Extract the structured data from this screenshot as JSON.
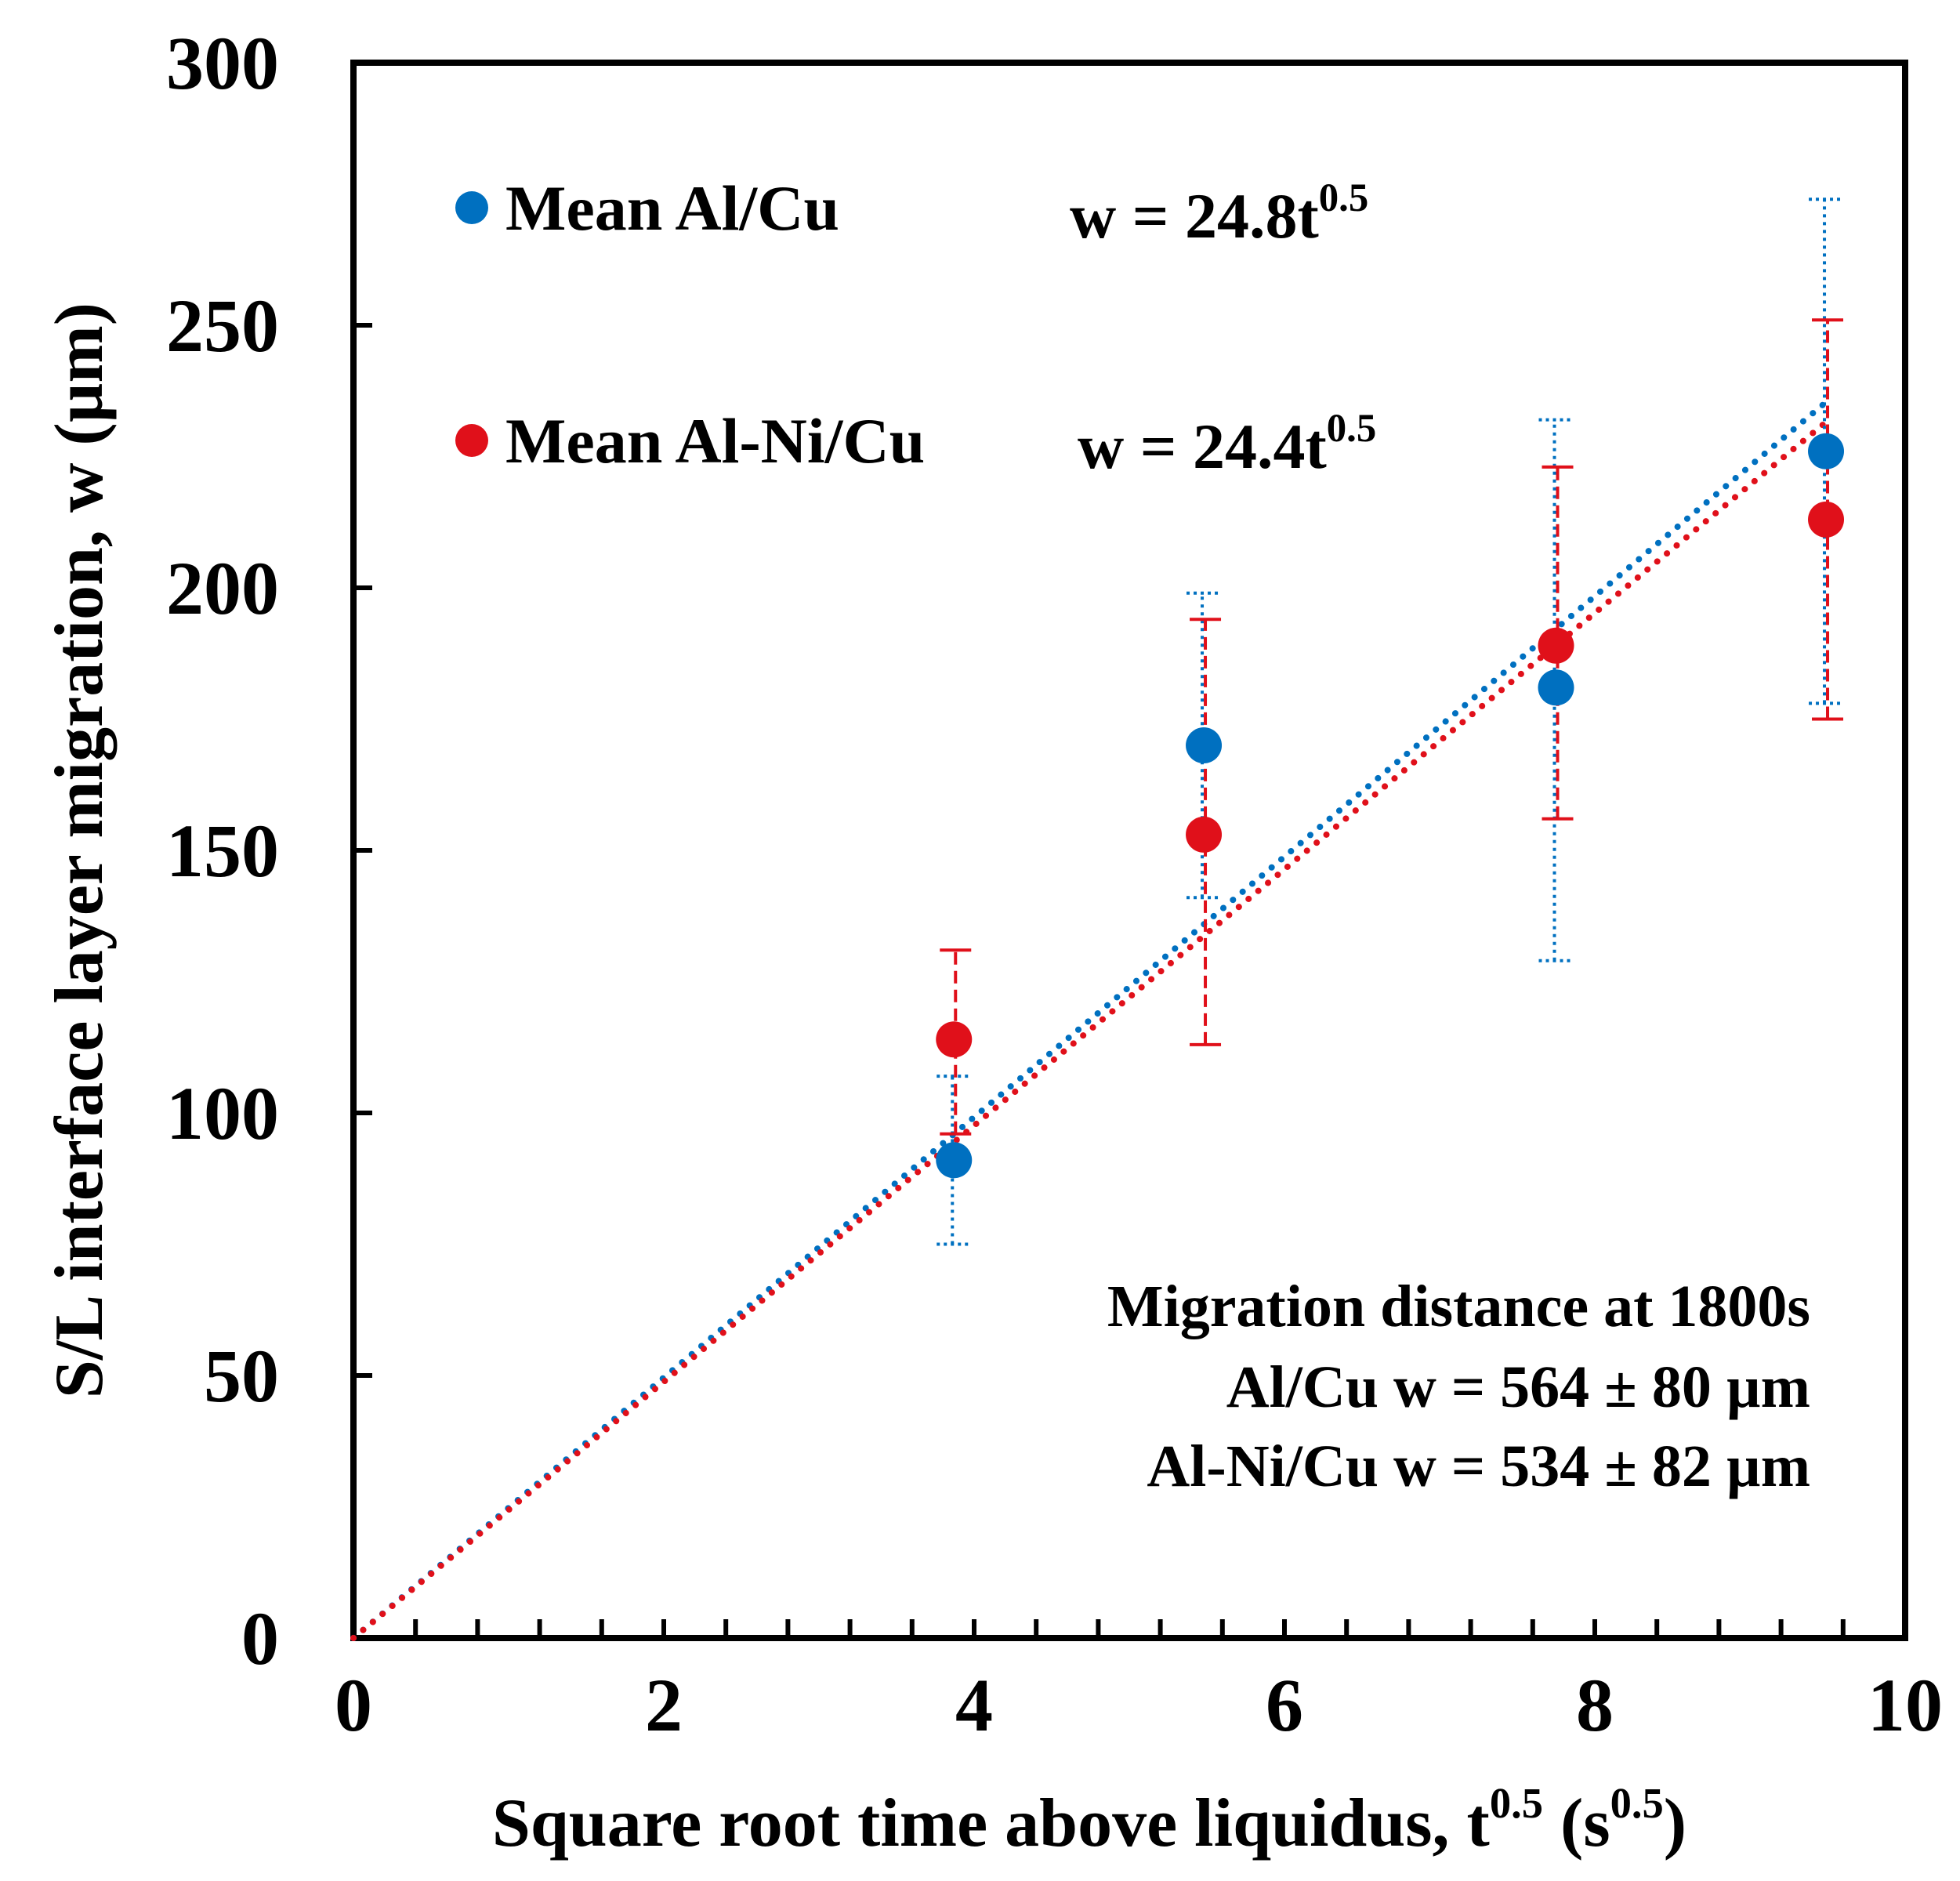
{
  "chart_data": {
    "type": "scatter",
    "xlabel": "Square root time above liquidus, t",
    "xlabel_sup1": "0.5",
    "xlabel_mid": " (s",
    "xlabel_sup2": "0.5",
    "xlabel_end": ")",
    "ylabel": "S/L interface layer migration, w (µm)",
    "xlim": [
      0,
      10
    ],
    "ylim": [
      0,
      300
    ],
    "xticks": [
      0,
      2,
      4,
      6,
      8,
      10
    ],
    "xticks_minor_step": 0.4,
    "yticks": [
      0,
      50,
      100,
      150,
      200,
      250,
      300
    ],
    "x_tick_labels": [
      "0",
      "2",
      "4",
      "6",
      "8",
      "10"
    ],
    "y_tick_labels": [
      "0",
      "50",
      "100",
      "150",
      "200",
      "250",
      "300"
    ],
    "grid": false,
    "series": [
      {
        "name": "Mean Al/Cu",
        "color": "#0070C0",
        "x": [
          3.87,
          5.48,
          7.75,
          9.49
        ],
        "y": [
          91,
          170,
          181,
          226
        ],
        "err_low": [
          75,
          141,
          129,
          178
        ],
        "err_high": [
          107,
          199,
          232,
          274
        ],
        "fit_label": "w = 24.8t",
        "fit_sup": "0.5",
        "fit_slope": 24.8
      },
      {
        "name": "Mean Al-Ni/Cu",
        "color": "#E0101A",
        "x": [
          3.87,
          5.48,
          7.75,
          9.49
        ],
        "y": [
          114,
          153,
          189,
          213
        ],
        "err_low": [
          96,
          113,
          156,
          175
        ],
        "err_high": [
          131,
          194,
          223,
          251
        ],
        "fit_label": "w = 24.4t",
        "fit_sup": "0.5",
        "fit_slope": 24.4
      }
    ],
    "annotation": {
      "line1": "Migration distance at 1800s",
      "line2": "Al/Cu w = 564 ± 80 µm",
      "line3": "Al-Ni/Cu w = 534 ± 82 µm"
    }
  }
}
